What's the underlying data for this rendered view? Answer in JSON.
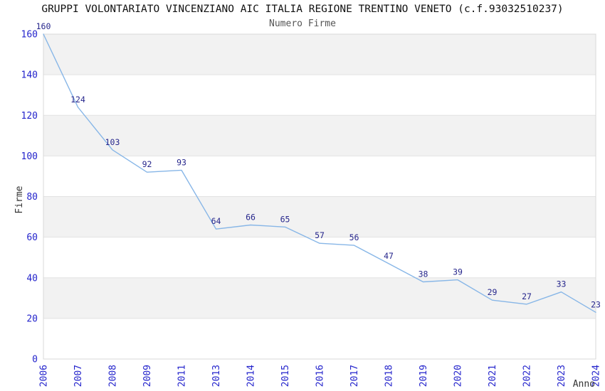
{
  "title": "GRUPPI VOLONTARIATO VINCENZIANO AIC ITALIA REGIONE TRENTINO VENETO (c.f.93032510237)",
  "subtitle": "Numero Firme",
  "chart_data": {
    "type": "line",
    "title": "GRUPPI VOLONTARIATO VINCENZIANO AIC ITALIA REGIONE TRENTINO VENETO (c.f.93032510237)",
    "subtitle": "Numero Firme",
    "xlabel": "Anno",
    "ylabel": "Firme",
    "categories": [
      "2006",
      "2007",
      "2008",
      "2009",
      "2011",
      "2013",
      "2014",
      "2015",
      "2016",
      "2017",
      "2018",
      "2019",
      "2020",
      "2021",
      "2022",
      "2023",
      "2024"
    ],
    "values": [
      160,
      124,
      103,
      92,
      93,
      64,
      66,
      65,
      57,
      56,
      47,
      38,
      39,
      29,
      27,
      33,
      23
    ],
    "ylim": [
      0,
      160
    ],
    "ytick_step": 20,
    "yticks": [
      0,
      20,
      40,
      60,
      80,
      100,
      120,
      140,
      160
    ],
    "grid": "horizontal-bands-alternating",
    "legend": "none",
    "data_labels": "above-points",
    "x_tick_rotation": 90,
    "colors": {
      "line": "#87b6e7",
      "data_label": "#26268c",
      "tick_label": "#2424cc",
      "band_gray": "#f2f2f2",
      "band_white": "#ffffff",
      "gridline": "#e2e2e2",
      "plot_border": "#d8d8d8",
      "axis_title": "#333333",
      "title": "#111111",
      "subtitle": "#555555",
      "background": "#ffffff"
    }
  }
}
